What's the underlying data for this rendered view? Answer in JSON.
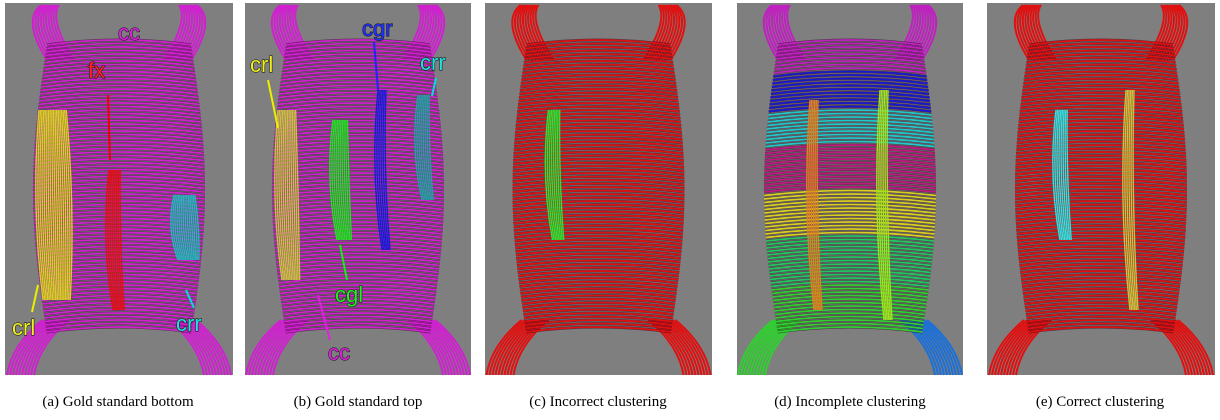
{
  "panels": [
    {
      "caption": "(a)  Gold standard bottom",
      "labels": [
        "cc",
        "fx",
        "crl",
        "crr"
      ]
    },
    {
      "caption": "(b)  Gold standard top",
      "labels": [
        "crl",
        "cgr",
        "crr",
        "cgl",
        "cc"
      ]
    },
    {
      "caption": "(c)  Incorrect clustering",
      "labels": []
    },
    {
      "caption": "(d)  Incomplete clustering",
      "labels": []
    },
    {
      "caption": "(e)  Correct clustering",
      "labels": []
    }
  ]
}
